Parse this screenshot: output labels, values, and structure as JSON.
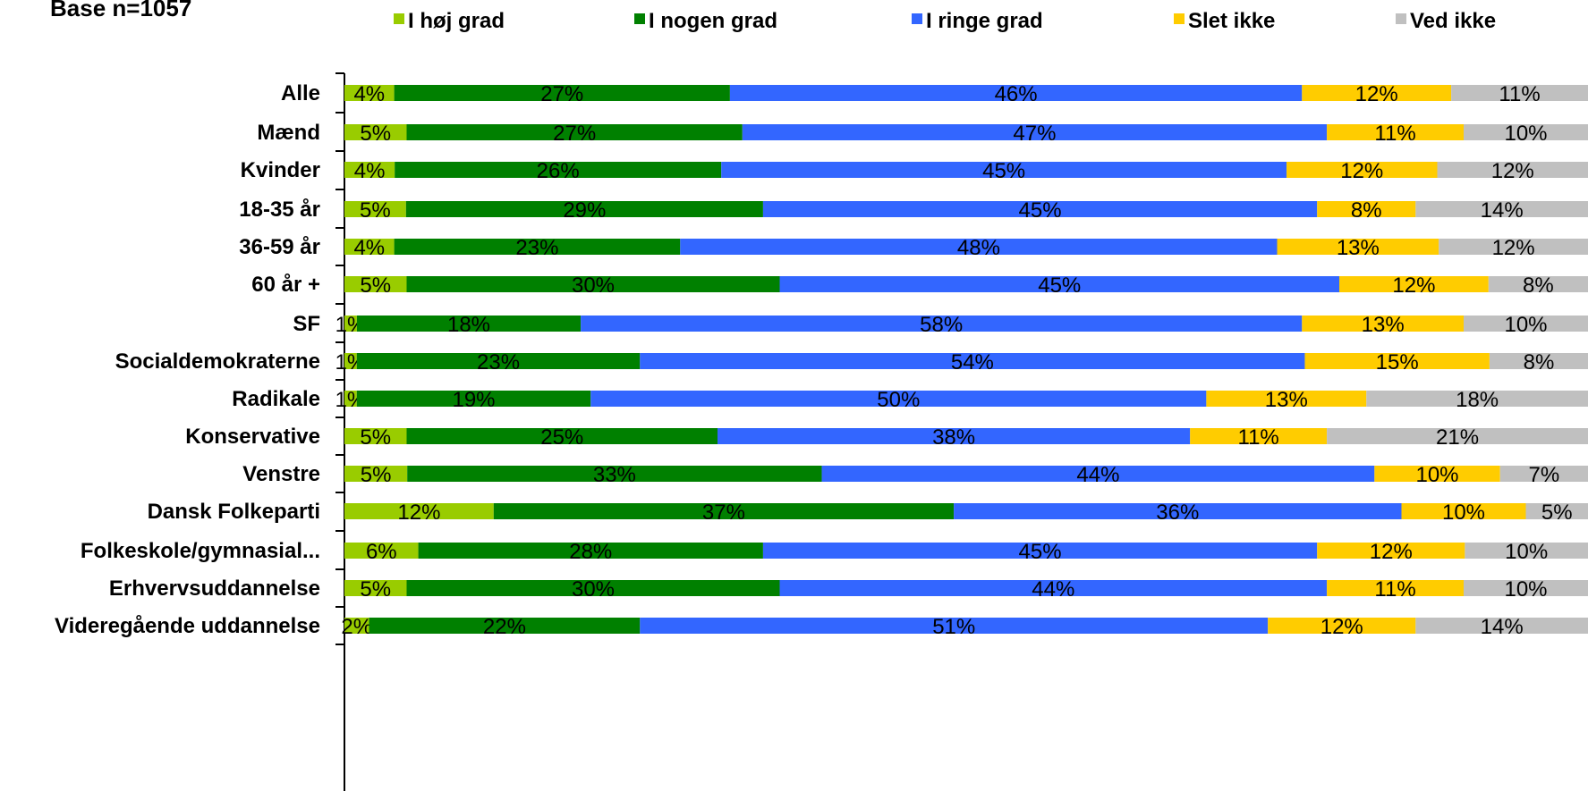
{
  "chart_data": {
    "type": "bar",
    "orientation": "horizontal",
    "stacked": true,
    "percent_stacked": true,
    "title": "Base n=1057",
    "legend": {
      "position": "top"
    },
    "series": [
      {
        "name": "I høj grad",
        "color": "#99cc00"
      },
      {
        "name": "I nogen grad",
        "color": "#008000"
      },
      {
        "name": "I ringe grad",
        "color": "#3366ff"
      },
      {
        "name": "Slet ikke",
        "color": "#ffcc00"
      },
      {
        "name": "Ved ikke",
        "color": "#c0c0c0"
      }
    ],
    "groups": [
      [
        {
          "label": "Alle",
          "values": [
            4,
            27,
            46,
            12,
            11
          ]
        }
      ],
      [
        {
          "label": "Mænd",
          "values": [
            5,
            27,
            47,
            11,
            10
          ]
        },
        {
          "label": "Kvinder",
          "values": [
            4,
            26,
            45,
            12,
            12
          ]
        }
      ],
      [
        {
          "label": "18-35 år",
          "values": [
            5,
            29,
            45,
            8,
            14
          ]
        },
        {
          "label": "36-59 år",
          "values": [
            4,
            23,
            48,
            13,
            12
          ]
        },
        {
          "label": "60 år +",
          "values": [
            5,
            30,
            45,
            12,
            8
          ]
        }
      ],
      [
        {
          "label": "SF",
          "values": [
            1,
            18,
            58,
            13,
            10
          ]
        },
        {
          "label": "Socialdemokraterne",
          "values": [
            1,
            23,
            54,
            15,
            8
          ]
        },
        {
          "label": "Radikale",
          "values": [
            1,
            19,
            50,
            13,
            18
          ]
        },
        {
          "label": "Konservative",
          "values": [
            5,
            25,
            38,
            11,
            21
          ]
        },
        {
          "label": "Venstre",
          "values": [
            5,
            33,
            44,
            10,
            7
          ]
        },
        {
          "label": "Dansk Folkeparti",
          "values": [
            12,
            37,
            36,
            10,
            5
          ]
        }
      ],
      [
        {
          "label": "Folkeskole/gymnasial...",
          "values": [
            6,
            28,
            45,
            12,
            10
          ]
        },
        {
          "label": "Erhvervsuddannelse",
          "values": [
            5,
            30,
            44,
            11,
            10
          ]
        },
        {
          "label": "Videregående uddannelse",
          "values": [
            2,
            22,
            51,
            12,
            14
          ]
        }
      ]
    ],
    "value_suffix": "%",
    "xlim": [
      0,
      100
    ]
  }
}
